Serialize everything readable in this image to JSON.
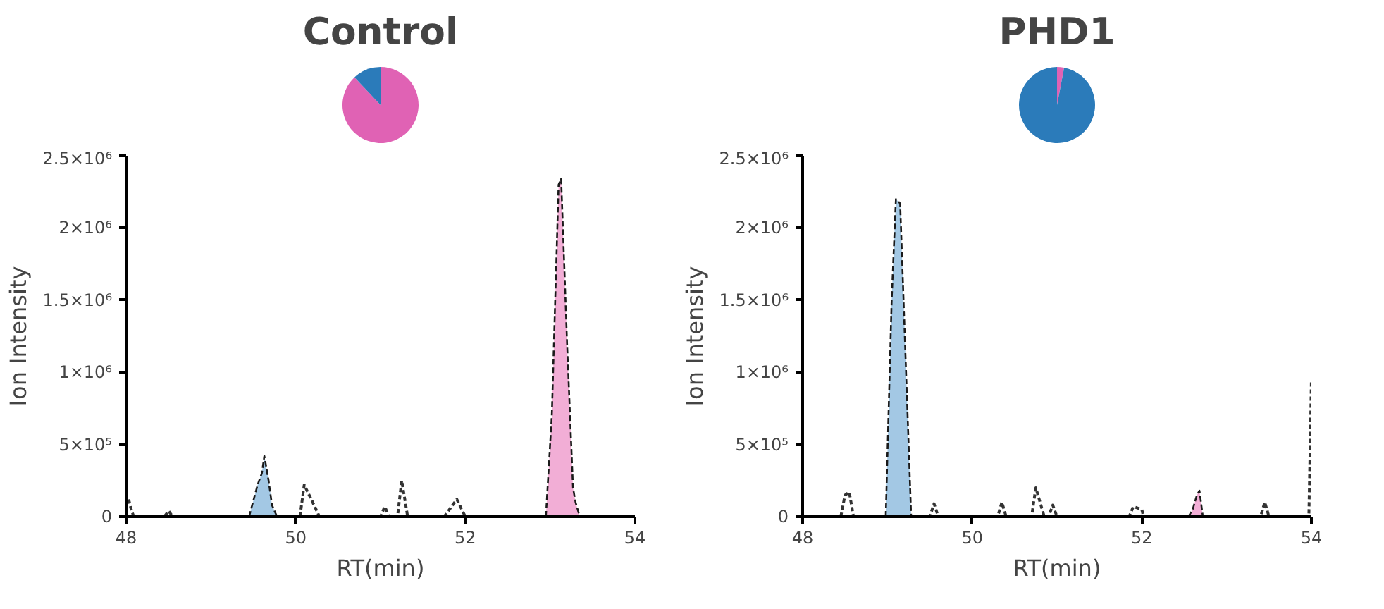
{
  "chart_data": [
    {
      "type": "pie",
      "title": "Control",
      "categories": [
        null,
        null
      ],
      "values": [
        88,
        12
      ],
      "colors": [
        "#e062b4",
        "#2b7bba"
      ]
    },
    {
      "type": "area",
      "xlabel": "RT(min)",
      "ylabel": "Ion Intensity",
      "xlim": [
        48,
        54
      ],
      "xticks": [
        48,
        50,
        52,
        54
      ],
      "ylim": [
        0,
        2500000
      ],
      "yticks": [
        {
          "value": 0,
          "label": "0"
        },
        {
          "value": 500000,
          "label": "5×10⁵"
        },
        {
          "value": 1000000,
          "label": "1×10⁶"
        },
        {
          "value": 1500000,
          "label": "1.5×10⁶"
        },
        {
          "value": 2000000,
          "label": "2×10⁶"
        },
        {
          "value": 2500000,
          "label": "2.5×10⁶"
        }
      ],
      "grid": false,
      "series": [
        {
          "type": "area",
          "color": "#a3c8e4",
          "line_style": "dashed",
          "x": [
            49.45,
            49.55,
            49.6,
            49.63,
            49.68,
            49.72,
            49.78
          ],
          "values": [
            0,
            220000,
            300000,
            420000,
            250000,
            80000,
            0
          ]
        },
        {
          "type": "area",
          "color": "#f2aed6",
          "line_style": "dashed",
          "x": [
            52.95,
            53.02,
            53.1,
            53.13,
            53.2,
            53.27,
            53.3,
            53.35
          ],
          "values": [
            0,
            700000,
            2300000,
            2340000,
            1200000,
            200000,
            100000,
            0
          ]
        },
        {
          "type": "line",
          "color": "#333333",
          "line_style": "dotted",
          "x": [
            48.03,
            48.06,
            48.09,
            48.45,
            48.5,
            48.55,
            50.05,
            50.1,
            50.2,
            50.28,
            51.0,
            51.05,
            51.1,
            51.2,
            51.25,
            51.32,
            51.75,
            51.9,
            52.0
          ],
          "values": [
            120000,
            50000,
            0,
            0,
            40000,
            0,
            0,
            220000,
            100000,
            0,
            0,
            70000,
            0,
            0,
            250000,
            0,
            0,
            120000,
            0
          ]
        }
      ]
    },
    {
      "type": "pie",
      "title": "PHD1",
      "categories": [
        null,
        null
      ],
      "values": [
        3,
        97
      ],
      "colors": [
        "#e062b4",
        "#2b7bba"
      ]
    },
    {
      "type": "area",
      "xlabel": "RT(min)",
      "ylabel": "Ion Intensity",
      "xlim": [
        48,
        54
      ],
      "xticks": [
        48,
        50,
        52,
        54
      ],
      "ylim": [
        0,
        2500000
      ],
      "yticks": [
        {
          "value": 0,
          "label": "0"
        },
        {
          "value": 500000,
          "label": "5×10⁵"
        },
        {
          "value": 1000000,
          "label": "1×10⁶"
        },
        {
          "value": 1500000,
          "label": "1.5×10⁶"
        },
        {
          "value": 2000000,
          "label": "2×10⁶"
        },
        {
          "value": 2500000,
          "label": "2.5×10⁶"
        }
      ],
      "grid": false,
      "series": [
        {
          "type": "area",
          "color": "#a3c8e4",
          "line_style": "dashed",
          "x": [
            48.98,
            49.05,
            49.1,
            49.15,
            49.22,
            49.28
          ],
          "values": [
            0,
            1500000,
            2200000,
            2170000,
            1000000,
            0
          ]
        },
        {
          "type": "area",
          "color": "#f2aed6",
          "line_style": "dashed",
          "x": [
            52.55,
            52.6,
            52.65,
            52.68,
            52.72
          ],
          "values": [
            0,
            50000,
            150000,
            180000,
            0
          ]
        },
        {
          "type": "line",
          "color": "#333333",
          "line_style": "dotted",
          "x": [
            48.45,
            48.5,
            48.55,
            48.6,
            49.5,
            49.55,
            49.6,
            50.3,
            50.35,
            50.4,
            50.7,
            50.75,
            50.8,
            50.85,
            50.9,
            50.95,
            51.0,
            51.85,
            51.9,
            52.0,
            52.02,
            53.4,
            53.45,
            53.5,
            53.97,
            54.0
          ],
          "values": [
            0,
            150000,
            170000,
            0,
            0,
            90000,
            0,
            0,
            100000,
            0,
            0,
            200000,
            100000,
            0,
            0,
            80000,
            0,
            0,
            70000,
            50000,
            0,
            0,
            100000,
            0,
            0,
            950000
          ]
        }
      ]
    }
  ]
}
